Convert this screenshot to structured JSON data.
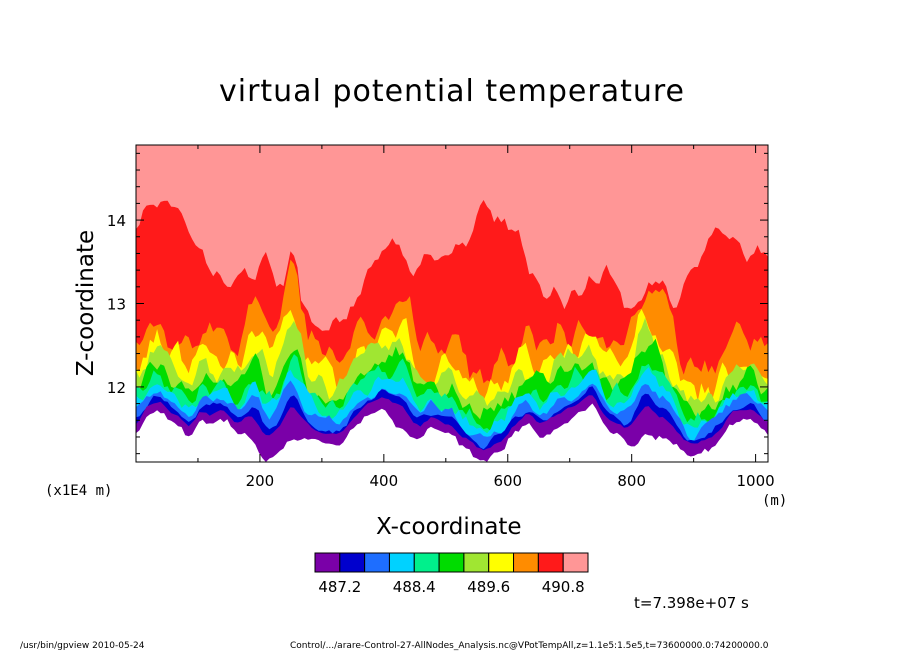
{
  "chart_data": {
    "type": "heatmap",
    "title": "virtual potential temperature",
    "xlabel": "X-coordinate",
    "ylabel": "Z-coordinate",
    "x_unit_label": "(m)",
    "y_unit_label": "(x1E4 m)",
    "xlim": [
      0,
      1020
    ],
    "ylim": [
      11.1,
      14.9
    ],
    "x_ticks": [
      "200",
      "400",
      "600",
      "800",
      "1000"
    ],
    "y_ticks": [
      "12",
      "13",
      "14"
    ],
    "x_tick_values": [
      200,
      400,
      600,
      800,
      1000
    ],
    "y_tick_values": [
      12,
      13,
      14
    ],
    "colorbar": {
      "colors": [
        "#7a00a8",
        "#0000cd",
        "#1e6eff",
        "#00d2ff",
        "#00f08c",
        "#00dc00",
        "#a0e632",
        "#ffff00",
        "#ff8c00",
        "#ff1a1a",
        "#ff9696"
      ],
      "labels": [
        "487.2",
        "488.4",
        "489.6",
        "490.8"
      ]
    },
    "time_label": "t=7.398e+07 s"
  },
  "footer": {
    "left": "/usr/bin/gpview   2010-05-24",
    "right": "Control/.../arare-Control-27-AllNodes_Analysis.nc@VPotTempAll,z=1.1e5:1.5e5,t=73600000.0:74200000.0"
  }
}
